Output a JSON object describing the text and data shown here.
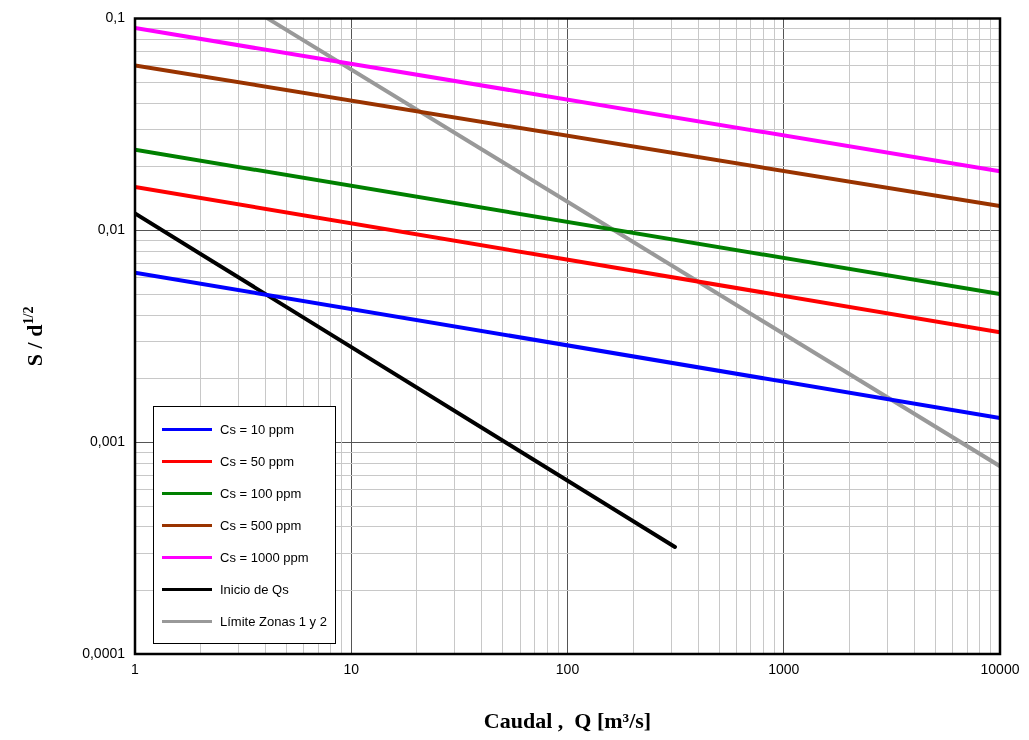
{
  "chart_data": {
    "type": "line",
    "xlabel": "Caudal ,  Q [m³/s]",
    "ylabel": "S / d$^{1/2}$",
    "log": "xy",
    "grid": true,
    "legend": "bottom left",
    "marker": "none",
    "line_style": "solid",
    "xlim": [
      1,
      10000
    ],
    "xticks": [
      1,
      10,
      100,
      1000,
      10000
    ],
    "ylim": [
      0.0001,
      0.1
    ],
    "yticks": [
      {
        "value": 0.0001,
        "label": "0,0001"
      },
      {
        "value": 0.001,
        "label": "0,001"
      },
      {
        "value": 0.01,
        "label": "0,01"
      },
      {
        "value": 0.1,
        "label": "0,1"
      }
    ],
    "series": [
      {
        "name": "Cs = 10 ppm",
        "color": "#0000ff",
        "x": [
          1,
          10000
        ],
        "values": [
          0.0063,
          0.0013
        ]
      },
      {
        "name": "Cs = 50 ppm",
        "color": "#ff0000",
        "x": [
          1,
          10000
        ],
        "values": [
          0.016,
          0.0033
        ]
      },
      {
        "name": "Cs = 100 ppm",
        "color": "#008000",
        "x": [
          1,
          10000
        ],
        "values": [
          0.024,
          0.005
        ]
      },
      {
        "name": "Cs = 500 ppm",
        "color": "#993300",
        "x": [
          1,
          10000
        ],
        "values": [
          0.06,
          0.013
        ]
      },
      {
        "name": "Cs = 1000 ppm",
        "color": "#ff00ff",
        "x": [
          1,
          10000
        ],
        "values": [
          0.09,
          0.019
        ]
      },
      {
        "name": "Inicio de Qs",
        "color": "#000000",
        "x": [
          1,
          314
        ],
        "values": [
          0.012,
          0.00032
        ]
      },
      {
        "name": "Límite Zonas 1 y 2",
        "color": "#999999",
        "x": [
          4.1,
          10000
        ],
        "values": [
          0.1,
          0.00077
        ]
      }
    ]
  }
}
